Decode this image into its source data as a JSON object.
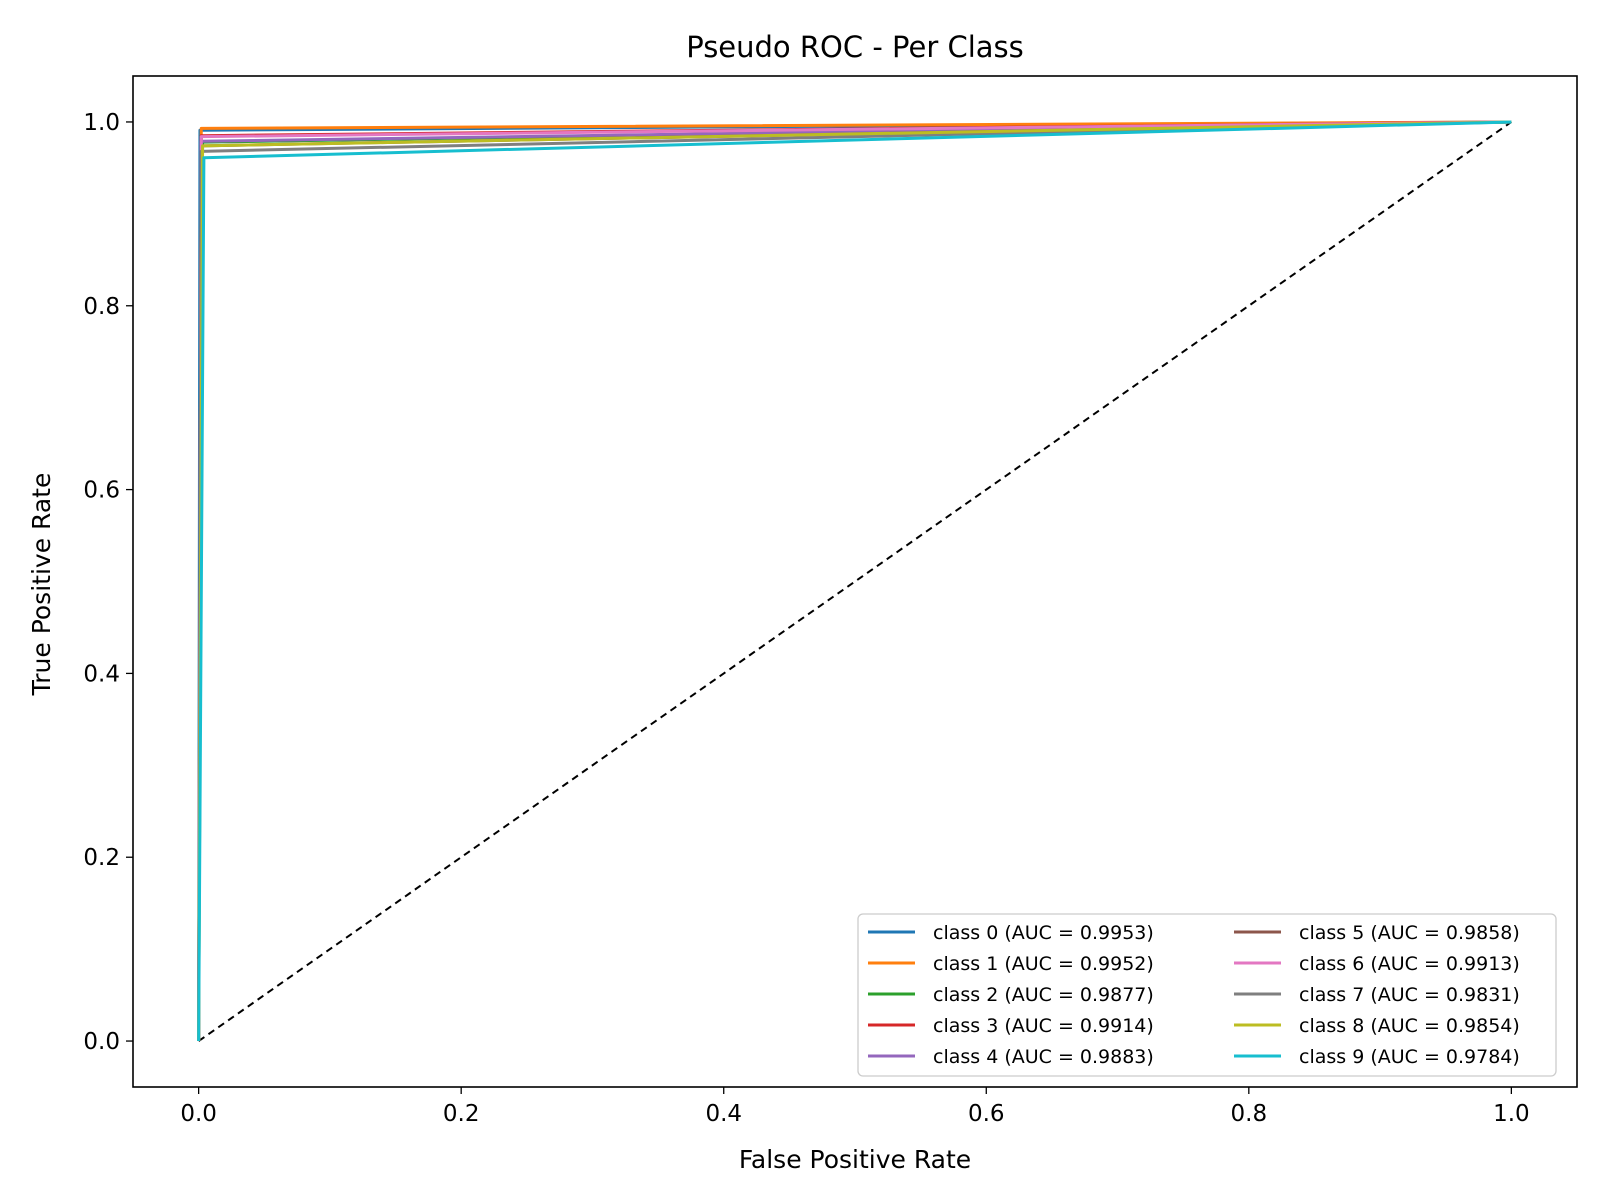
{
  "chart_data": {
    "type": "line",
    "title": "Pseudo ROC - Per Class",
    "xlabel": "False Positive Rate",
    "ylabel": "True Positive Rate",
    "xlim": [
      -0.05,
      1.05
    ],
    "ylim": [
      -0.05,
      1.05
    ],
    "xticks": [
      "0.0",
      "0.2",
      "0.4",
      "0.6",
      "0.8",
      "1.0"
    ],
    "yticks": [
      "0.0",
      "0.2",
      "0.4",
      "0.6",
      "0.8",
      "1.0"
    ],
    "grid": false,
    "legend_position": "lower-right",
    "legend_columns": 2,
    "series": [
      {
        "name": "class 0 (AUC = 0.9953)",
        "color": "#1f77b4",
        "x": [
          0,
          0.001,
          1
        ],
        "y": [
          0,
          0.991,
          1
        ]
      },
      {
        "name": "class 1 (AUC = 0.9952)",
        "color": "#ff7f0e",
        "x": [
          0,
          0.002,
          1
        ],
        "y": [
          0,
          0.993,
          1
        ]
      },
      {
        "name": "class 2 (AUC = 0.9877)",
        "color": "#2ca02c",
        "x": [
          0,
          0.003,
          1
        ],
        "y": [
          0,
          0.978,
          1
        ]
      },
      {
        "name": "class 3 (AUC = 0.9914)",
        "color": "#d62728",
        "x": [
          0,
          0.002,
          1
        ],
        "y": [
          0,
          0.985,
          1
        ]
      },
      {
        "name": "class 4 (AUC = 0.9883)",
        "color": "#9467bd",
        "x": [
          0,
          0.002,
          1
        ],
        "y": [
          0,
          0.979,
          1
        ]
      },
      {
        "name": "class 5 (AUC = 0.9858)",
        "color": "#8c564b",
        "x": [
          0,
          0.002,
          1
        ],
        "y": [
          0,
          0.974,
          1
        ]
      },
      {
        "name": "class 6 (AUC = 0.9913)",
        "color": "#e377c2",
        "x": [
          0,
          0.002,
          1
        ],
        "y": [
          0,
          0.984,
          1
        ]
      },
      {
        "name": "class 7 (AUC = 0.9831)",
        "color": "#7f7f7f",
        "x": [
          0,
          0.002,
          1
        ],
        "y": [
          0,
          0.968,
          1
        ]
      },
      {
        "name": "class 8 (AUC = 0.9854)",
        "color": "#bcbd22",
        "x": [
          0,
          0.003,
          1
        ],
        "y": [
          0,
          0.974,
          1
        ]
      },
      {
        "name": "class 9 (AUC = 0.9784)",
        "color": "#17becf",
        "x": [
          0,
          0.004,
          1
        ],
        "y": [
          0,
          0.961,
          1
        ]
      }
    ],
    "reference_line": {
      "x": [
        0,
        1
      ],
      "y": [
        0,
        1
      ],
      "color": "#000000",
      "style": "dashed"
    }
  }
}
